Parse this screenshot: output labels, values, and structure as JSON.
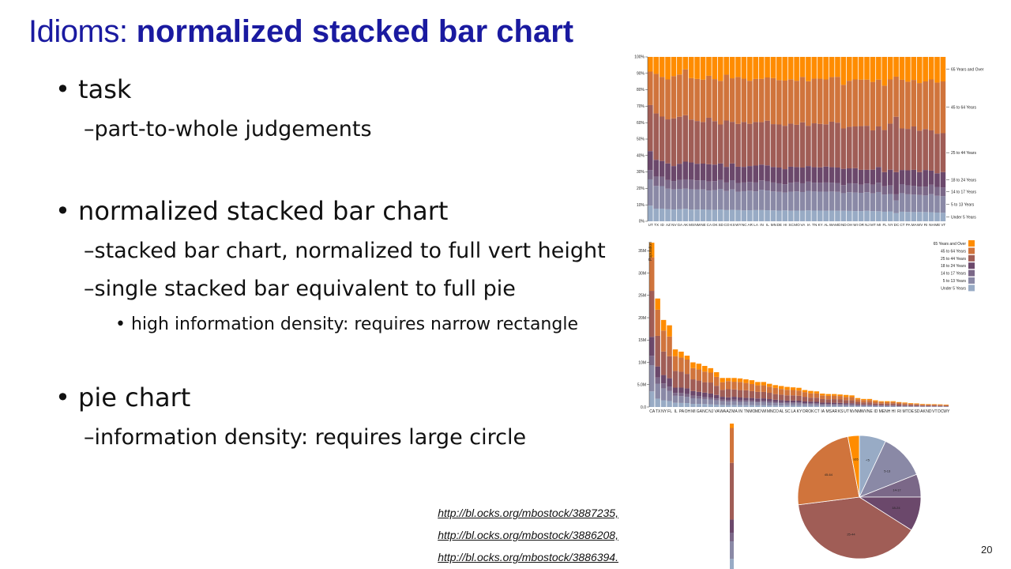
{
  "slide": {
    "title_prefix": "Idioms:",
    "title_main": "normalized stacked bar chart",
    "page_number": "20",
    "bullets": [
      {
        "text": "task",
        "level": 1
      },
      {
        "text": "part-to-whole judgements",
        "level": 2
      },
      {
        "text": "normalized stacked bar chart",
        "level": 1
      },
      {
        "text": "stacked bar chart, normalized to full vert height",
        "level": 2
      },
      {
        "text": "single stacked bar equivalent to full pie",
        "level": 2
      },
      {
        "text": "high information density: requires narrow rectangle",
        "level": 3
      },
      {
        "text": "pie chart",
        "level": 1
      },
      {
        "text": "information density: requires large circle",
        "level": 2
      }
    ],
    "links": [
      "http://bl.ocks.org/mbostock/3887235,",
      "http://bl.ocks.org/mbostock/3886208,",
      "http://bl.ocks.org/mbostock/3886394."
    ]
  },
  "colors": {
    "title": "#1a1aa0",
    "age_groups": [
      "#98abc5",
      "#8a89a6",
      "#7b6888",
      "#6b486b",
      "#a05d56",
      "#d0743c",
      "#ff8c00"
    ]
  },
  "chart_data": [
    {
      "type": "bar",
      "subtype": "normalized-stacked",
      "categories": [
        "UT",
        "TX",
        "ID",
        "AZ",
        "NV",
        "GA",
        "AK",
        "MS",
        "NM",
        "NE",
        "CA",
        "OK",
        "SD",
        "CO",
        "KS",
        "WY",
        "NC",
        "AR",
        "LA",
        "IN",
        "IL",
        "MN",
        "DE",
        "HI",
        "SC",
        "MO",
        "VA",
        "IA",
        "TN",
        "KY",
        "AL",
        "WA",
        "MD",
        "ND",
        "OH",
        "WI",
        "OR",
        "NJ",
        "MT",
        "MI",
        "FL",
        "NY",
        "DC",
        "CT",
        "PA",
        "MA",
        "WV",
        "RI",
        "NH",
        "ME",
        "VT"
      ],
      "series_names": [
        "Under 5 Years",
        "5 to 13 Years",
        "14 to 17 Years",
        "18 to 24 Years",
        "25 to 44 Years",
        "45 to 64 Years",
        "65 Years and Over"
      ],
      "stack_order": [
        "Under 5 Years",
        "5 to 13 Years",
        "14 to 17 Years",
        "18 to 24 Years",
        "25 to 44 Years",
        "45 to 64 Years",
        "65 Years and Over"
      ],
      "y_ticks": [
        "0%",
        "10%",
        "20%",
        "30%",
        "40%",
        "50%",
        "60%",
        "70%",
        "80%",
        "90%",
        "100%"
      ],
      "ylim": [
        0,
        1
      ],
      "legend_placement": "right-inline",
      "approx_shares": [
        [
          0.095,
          0.16,
          0.057,
          0.115,
          0.28,
          0.204,
          0.089
        ],
        [
          0.077,
          0.138,
          0.057,
          0.102,
          0.282,
          0.241,
          0.103
        ],
        [
          0.077,
          0.137,
          0.057,
          0.096,
          0.27,
          0.241,
          0.122
        ],
        [
          0.073,
          0.125,
          0.053,
          0.101,
          0.268,
          0.243,
          0.137
        ],
        [
          0.072,
          0.122,
          0.051,
          0.091,
          0.29,
          0.257,
          0.117
        ],
        [
          0.073,
          0.124,
          0.055,
          0.098,
          0.286,
          0.257,
          0.107
        ],
        [
          0.076,
          0.123,
          0.056,
          0.108,
          0.282,
          0.279,
          0.076
        ],
        [
          0.071,
          0.124,
          0.058,
          0.105,
          0.261,
          0.252,
          0.129
        ],
        [
          0.071,
          0.122,
          0.056,
          0.101,
          0.26,
          0.256,
          0.134
        ],
        [
          0.072,
          0.122,
          0.056,
          0.101,
          0.253,
          0.258,
          0.138
        ],
        [
          0.07,
          0.117,
          0.055,
          0.105,
          0.283,
          0.255,
          0.115
        ],
        [
          0.069,
          0.12,
          0.055,
          0.101,
          0.264,
          0.256,
          0.135
        ],
        [
          0.072,
          0.125,
          0.054,
          0.101,
          0.237,
          0.265,
          0.146
        ],
        [
          0.068,
          0.116,
          0.052,
          0.095,
          0.282,
          0.279,
          0.108
        ],
        [
          0.07,
          0.124,
          0.056,
          0.102,
          0.253,
          0.265,
          0.13
        ],
        [
          0.068,
          0.112,
          0.053,
          0.099,
          0.26,
          0.286,
          0.122
        ],
        [
          0.066,
          0.117,
          0.053,
          0.095,
          0.273,
          0.264,
          0.132
        ],
        [
          0.067,
          0.119,
          0.054,
          0.096,
          0.257,
          0.262,
          0.145
        ],
        [
          0.068,
          0.114,
          0.054,
          0.103,
          0.265,
          0.262,
          0.134
        ],
        [
          0.068,
          0.124,
          0.057,
          0.096,
          0.258,
          0.264,
          0.133
        ],
        [
          0.067,
          0.12,
          0.056,
          0.097,
          0.272,
          0.263,
          0.125
        ],
        [
          0.066,
          0.116,
          0.054,
          0.094,
          0.261,
          0.28,
          0.129
        ],
        [
          0.065,
          0.114,
          0.052,
          0.096,
          0.262,
          0.27,
          0.141
        ],
        [
          0.066,
          0.109,
          0.05,
          0.092,
          0.264,
          0.275,
          0.144
        ],
        [
          0.064,
          0.116,
          0.054,
          0.098,
          0.262,
          0.27,
          0.136
        ],
        [
          0.065,
          0.117,
          0.055,
          0.093,
          0.257,
          0.268,
          0.145
        ],
        [
          0.065,
          0.113,
          0.053,
          0.096,
          0.275,
          0.276,
          0.122
        ],
        [
          0.066,
          0.119,
          0.056,
          0.095,
          0.245,
          0.271,
          0.148
        ],
        [
          0.065,
          0.116,
          0.054,
          0.094,
          0.267,
          0.272,
          0.132
        ],
        [
          0.065,
          0.115,
          0.054,
          0.094,
          0.264,
          0.276,
          0.132
        ],
        [
          0.064,
          0.116,
          0.056,
          0.097,
          0.257,
          0.273,
          0.137
        ],
        [
          0.065,
          0.116,
          0.054,
          0.094,
          0.277,
          0.271,
          0.123
        ],
        [
          0.064,
          0.115,
          0.054,
          0.094,
          0.273,
          0.279,
          0.121
        ],
        [
          0.064,
          0.107,
          0.049,
          0.099,
          0.246,
          0.265,
          0.17
        ],
        [
          0.063,
          0.114,
          0.054,
          0.091,
          0.253,
          0.28,
          0.145
        ],
        [
          0.062,
          0.113,
          0.055,
          0.093,
          0.254,
          0.286,
          0.137
        ],
        [
          0.062,
          0.111,
          0.05,
          0.09,
          0.266,
          0.283,
          0.138
        ],
        [
          0.064,
          0.113,
          0.053,
          0.083,
          0.268,
          0.281,
          0.138
        ],
        [
          0.062,
          0.108,
          0.053,
          0.091,
          0.239,
          0.295,
          0.152
        ],
        [
          0.061,
          0.117,
          0.057,
          0.095,
          0.247,
          0.285,
          0.138
        ],
        [
          0.058,
          0.105,
          0.05,
          0.086,
          0.256,
          0.27,
          0.175
        ],
        [
          0.06,
          0.106,
          0.052,
          0.096,
          0.28,
          0.269,
          0.137
        ],
        [
          0.05,
          0.077,
          0.037,
          0.135,
          0.337,
          0.244,
          0.12
        ],
        [
          0.058,
          0.113,
          0.055,
          0.086,
          0.253,
          0.296,
          0.139
        ],
        [
          0.057,
          0.107,
          0.055,
          0.091,
          0.252,
          0.287,
          0.151
        ],
        [
          0.056,
          0.107,
          0.053,
          0.097,
          0.264,
          0.283,
          0.14
        ],
        [
          0.057,
          0.103,
          0.051,
          0.088,
          0.252,
          0.29,
          0.159
        ],
        [
          0.056,
          0.101,
          0.054,
          0.101,
          0.249,
          0.29,
          0.149
        ],
        [
          0.055,
          0.11,
          0.057,
          0.086,
          0.245,
          0.31,
          0.137
        ],
        [
          0.053,
          0.102,
          0.054,
          0.083,
          0.241,
          0.311,
          0.156
        ],
        [
          0.052,
          0.101,
          0.053,
          0.093,
          0.237,
          0.315,
          0.149
        ]
      ]
    },
    {
      "type": "bar",
      "subtype": "stacked",
      "categories": [
        "CA",
        "TX",
        "NY",
        "FL",
        "IL",
        "PA",
        "OH",
        "MI",
        "GA",
        "NC",
        "NJ",
        "VA",
        "WA",
        "AZ",
        "MA",
        "IN",
        "TN",
        "MO",
        "MD",
        "WI",
        "MN",
        "CO",
        "AL",
        "SC",
        "LA",
        "KY",
        "OR",
        "OK",
        "CT",
        "IA",
        "MS",
        "AR",
        "KS",
        "UT",
        "NV",
        "NM",
        "WV",
        "NE",
        "ID",
        "ME",
        "NH",
        "HI",
        "RI",
        "MT",
        "DE",
        "SD",
        "AK",
        "ND",
        "VT",
        "DC",
        "WY"
      ],
      "ylabel": "Population",
      "y_ticks": [
        "0.0",
        "5.0M",
        "10M",
        "15M",
        "20M",
        "25M",
        "30M",
        "35M"
      ],
      "ylim": [
        0,
        37
      ],
      "legend_placement": "top-right",
      "legend": [
        "65 Years and Over",
        "45 to 64 Years",
        "25 to 44 Years",
        "18 to 24 Years",
        "14 to 17 Years",
        "5 to 13 Years",
        "Under 5 Years"
      ],
      "totals_millions": [
        36.8,
        24.3,
        19.5,
        18.3,
        12.9,
        12.4,
        11.5,
        10.0,
        9.7,
        9.2,
        8.7,
        7.8,
        6.5,
        6.5,
        6.5,
        6.4,
        6.2,
        6.0,
        5.6,
        5.6,
        5.2,
        4.9,
        4.7,
        4.5,
        4.4,
        4.3,
        3.8,
        3.6,
        3.5,
        3.0,
        2.9,
        2.9,
        2.8,
        2.7,
        2.6,
        2.0,
        1.8,
        1.8,
        1.5,
        1.3,
        1.3,
        1.3,
        1.1,
        1.0,
        0.87,
        0.8,
        0.69,
        0.64,
        0.62,
        0.59,
        0.53
      ]
    },
    {
      "type": "bar",
      "subtype": "single-stacked",
      "series_names": [
        "Under 5 Years",
        "5 to 13 Years",
        "14 to 17 Years",
        "18 to 24 Years",
        "25 to 44 Years",
        "45 to 64 Years",
        "65 Years and Over"
      ],
      "values": [
        0.07,
        0.12,
        0.06,
        0.09,
        0.39,
        0.24,
        0.03
      ]
    },
    {
      "type": "pie",
      "labels": [
        "<5",
        "5-13",
        "14-17",
        "18-24",
        "25-44",
        "45-64",
        "≥65"
      ],
      "values": [
        0.07,
        0.12,
        0.06,
        0.09,
        0.39,
        0.24,
        0.03
      ]
    }
  ]
}
